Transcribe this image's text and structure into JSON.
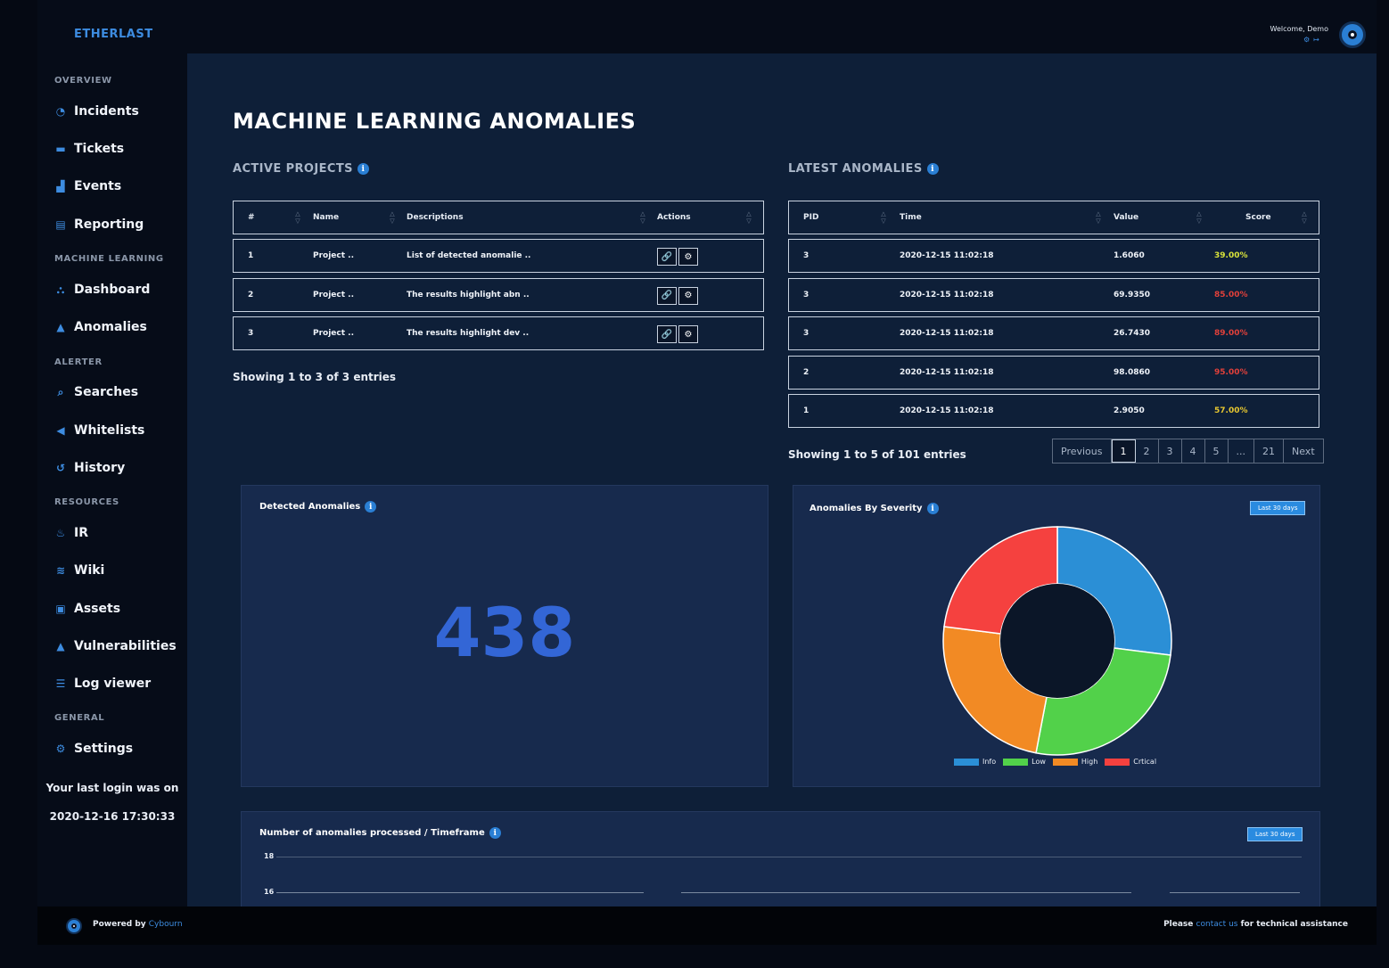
{
  "brand": "ETHERLAST",
  "user": {
    "welcome": "Welcome, Demo",
    "icons": [
      "gear-icon",
      "logout-icon"
    ]
  },
  "sidebar": {
    "sections": [
      {
        "title": "OVERVIEW",
        "items": [
          {
            "label": "Incidents",
            "icon": "pie-chart-icon"
          },
          {
            "label": "Tickets",
            "icon": "ticket-icon"
          },
          {
            "label": "Events",
            "icon": "area-chart-icon"
          },
          {
            "label": "Reporting",
            "icon": "document-icon"
          }
        ]
      },
      {
        "title": "MACHINE LEARNING",
        "items": [
          {
            "label": "Dashboard",
            "icon": "network-icon"
          },
          {
            "label": "Anomalies",
            "icon": "warning-icon"
          }
        ]
      },
      {
        "title": "ALERTER",
        "items": [
          {
            "label": "Searches",
            "icon": "search-icon"
          },
          {
            "label": "Whitelists",
            "icon": "rewind-icon"
          },
          {
            "label": "History",
            "icon": "history-icon"
          }
        ]
      },
      {
        "title": "RESOURCES",
        "items": [
          {
            "label": "IR",
            "icon": "fire-icon"
          },
          {
            "label": "Wiki",
            "icon": "layers-icon"
          },
          {
            "label": "Assets",
            "icon": "briefcase-icon"
          },
          {
            "label": "Vulnerabilities",
            "icon": "warning-icon"
          },
          {
            "label": "Log viewer",
            "icon": "list-icon"
          }
        ]
      },
      {
        "title": "GENERAL",
        "items": [
          {
            "label": "Settings",
            "icon": "gear-icon"
          }
        ]
      }
    ],
    "last_login_label": "Your last login was on",
    "last_login_value": "2020-12-16 17:30:33"
  },
  "page_title": "MACHINE LEARNING ANOMALIES",
  "projects": {
    "title": "ACTIVE PROJECTS",
    "columns": [
      "#",
      "Name",
      "Descriptions",
      "Actions"
    ],
    "rows": [
      {
        "id": "1",
        "name": "Project ..",
        "description": "List of detected anomalie .."
      },
      {
        "id": "2",
        "name": "Project ..",
        "description": "The results highlight abn .."
      },
      {
        "id": "3",
        "name": "Project ..",
        "description": "The results highlight dev .."
      }
    ],
    "entries": "Showing 1 to 3 of 3 entries"
  },
  "anomalies": {
    "title": "LATEST ANOMALIES",
    "columns": [
      "PID",
      "Time",
      "Value",
      "Score"
    ],
    "rows": [
      {
        "pid": "3",
        "time": "2020-12-15 11:02:18",
        "value": "1.6060",
        "score": "39.00%",
        "score_color": "#d8e23a"
      },
      {
        "pid": "3",
        "time": "2020-12-15 11:02:18",
        "value": "69.9350",
        "score": "85.00%",
        "score_color": "#e0403a"
      },
      {
        "pid": "3",
        "time": "2020-12-15 11:02:18",
        "value": "26.7430",
        "score": "89.00%",
        "score_color": "#e0403a"
      },
      {
        "pid": "2",
        "time": "2020-12-15 11:02:18",
        "value": "98.0860",
        "score": "95.00%",
        "score_color": "#e0403a"
      },
      {
        "pid": "1",
        "time": "2020-12-15 11:02:18",
        "value": "2.9050",
        "score": "57.00%",
        "score_color": "#e6c630"
      }
    ],
    "entries": "Showing 1 to 5 of 101 entries",
    "pagination": [
      "Previous",
      "1",
      "2",
      "3",
      "4",
      "5",
      "...",
      "21",
      "Next"
    ],
    "current_page": "1"
  },
  "detected": {
    "title": "Detected Anomalies",
    "count": "438"
  },
  "severity": {
    "title": "Anomalies By Severity",
    "range": "Last 30 days",
    "chart_data": {
      "type": "pie",
      "labels": [
        "Info",
        "Low",
        "High",
        "Crtical"
      ],
      "values": [
        27,
        26,
        24,
        23
      ],
      "colors": [
        "#2b8fd6",
        "#52d14a",
        "#f28a24",
        "#f5413f"
      ]
    }
  },
  "timeframe": {
    "title": "Number of anomalies processed / Timeframe",
    "range": "Last 30 days",
    "y_ticks": [
      "18",
      "16"
    ]
  },
  "footer": {
    "powered_by": "Powered by",
    "company": "Cybourn",
    "please": "Please",
    "contact": "contact us",
    "assistance": "for technical assistance"
  }
}
